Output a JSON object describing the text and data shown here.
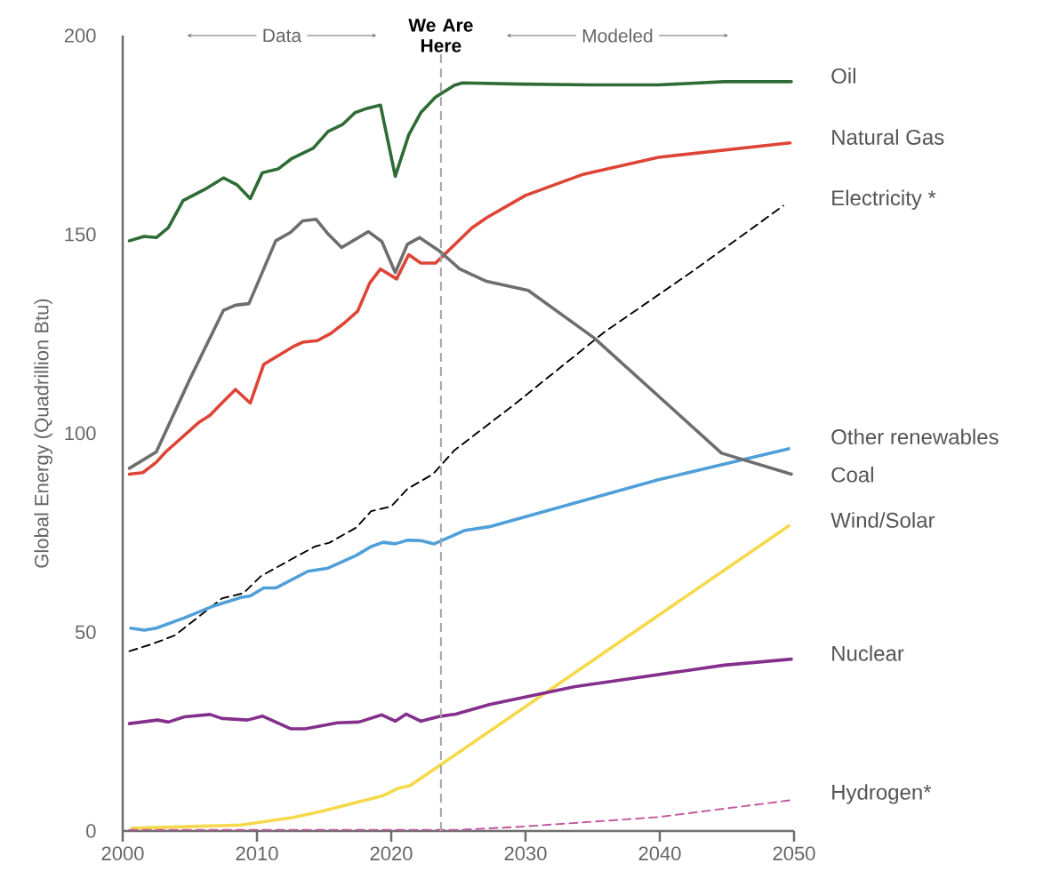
{
  "chart_data": {
    "type": "line",
    "ylabel": "Global Energy (Quadrillion Btu)",
    "xlim": [
      2000,
      2050
    ],
    "xticks": [
      2000,
      2010,
      2020,
      2030,
      2040,
      2050
    ],
    "ylim": [
      0,
      200
    ],
    "yticks": [
      0,
      50,
      100,
      150,
      200
    ],
    "ref_lines": [
      {
        "axis": "x",
        "value": 2023.7,
        "label": "We Are Here",
        "color": "#a6a6a6",
        "line_style": "dashed"
      }
    ],
    "annotations": [
      "Data",
      "Modeled"
    ],
    "series": [
      {
        "name": "Oil",
        "color": "#2e6b35",
        "line_style": "solid",
        "x": [
          2000.5,
          2001.6,
          2002.5,
          2003.4,
          2004.5,
          2006.1,
          2007.5,
          2008.5,
          2009.5,
          2010.4,
          2011.6,
          2012.6,
          2014.2,
          2015.3,
          2016.4,
          2017.3,
          2018.2,
          2019.2,
          2020.3,
          2021.3,
          2022.2,
          2023.3,
          2024.7,
          2025.3,
          2029.7,
          2034.8,
          2039.9,
          2044.8,
          2049.8
        ],
        "values": [
          148.4,
          149.5,
          149.2,
          151.7,
          158.5,
          161.3,
          164.2,
          162.5,
          159.0,
          165.5,
          166.5,
          169.1,
          171.7,
          175.9,
          177.7,
          180.6,
          181.7,
          182.5,
          164.6,
          175.0,
          180.6,
          184.5,
          187.5,
          188.1,
          187.8,
          187.6,
          187.6,
          188.4,
          188.4
        ]
      },
      {
        "name": "Natural Gas",
        "color": "#de4436",
        "line_style": "solid",
        "x": [
          2000.5,
          2001.5,
          2002.5,
          2003.2,
          2005.7,
          2006.5,
          2007.5,
          2008.4,
          2009.5,
          2010.5,
          2012.7,
          2013.4,
          2014.5,
          2015.5,
          2016.5,
          2017.5,
          2018.4,
          2019.2,
          2020.4,
          2021.3,
          2022.2,
          2023.3,
          2026.0,
          2027.1,
          2030.0,
          2034.2,
          2039.9,
          2049.7
        ],
        "values": [
          89.7,
          90.1,
          92.7,
          95.3,
          102.8,
          104.5,
          108.0,
          111.0,
          107.6,
          117.3,
          121.8,
          122.9,
          123.3,
          125.1,
          127.7,
          130.7,
          137.8,
          141.3,
          138.8,
          144.9,
          142.8,
          142.8,
          151.6,
          154.2,
          159.8,
          165.0,
          169.4,
          173.0
        ]
      },
      {
        "name": "Electricity *",
        "color": "#000000",
        "line_style": "dashed",
        "x": [
          2000.5,
          2002.1,
          2003.9,
          2005.7,
          2007.4,
          2009.0,
          2010.3,
          2012.5,
          2014.3,
          2015.4,
          2017.4,
          2018.5,
          2020.0,
          2021.2,
          2023.1,
          2024.7,
          2029.3,
          2035.9,
          2042.6,
          2049.2
        ],
        "values": [
          45.2,
          46.9,
          49.2,
          54.0,
          58.5,
          59.8,
          64.1,
          68.2,
          71.5,
          72.5,
          76.3,
          80.4,
          81.6,
          86.0,
          89.7,
          95.7,
          107.6,
          125.5,
          141.1,
          157.2
        ]
      },
      {
        "name": "Other renewables",
        "color": "#4f9fd9",
        "line_style": "solid",
        "x": [
          2000.6,
          2001.6,
          2002.5,
          2004.6,
          2006.8,
          2008.8,
          2009.5,
          2010.5,
          2011.4,
          2013.8,
          2015.3,
          2017.4,
          2018.5,
          2019.4,
          2020.3,
          2021.2,
          2022.2,
          2023.2,
          2025.5,
          2027.3,
          2039.9,
          2049.6
        ],
        "values": [
          51.0,
          50.5,
          51.0,
          53.6,
          56.6,
          58.7,
          59.1,
          61.1,
          61.1,
          65.3,
          66.1,
          69.3,
          71.5,
          72.6,
          72.2,
          73.1,
          73.0,
          72.2,
          75.6,
          76.5,
          88.3,
          96.1
        ]
      },
      {
        "name": "Coal",
        "color": "#6e6e6e",
        "line_style": "solid",
        "x": [
          2000.5,
          2002.5,
          2005.0,
          2007.5,
          2008.4,
          2009.4,
          2011.4,
          2012.5,
          2013.4,
          2014.4,
          2015.3,
          2016.3,
          2018.3,
          2019.3,
          2020.3,
          2021.2,
          2022.1,
          2023.6,
          2025.1,
          2027.1,
          2030.2,
          2035.1,
          2044.6,
          2049.8
        ],
        "values": [
          91.2,
          95.3,
          113.6,
          130.9,
          132.2,
          132.6,
          148.4,
          150.5,
          153.4,
          153.8,
          150.1,
          146.7,
          150.7,
          148.2,
          140.4,
          147.5,
          149.2,
          145.8,
          141.3,
          138.2,
          135.9,
          124.0,
          95.0,
          89.7
        ]
      },
      {
        "name": "Wind/Solar",
        "color": "#f5d94a",
        "line_style": "solid",
        "x": [
          2000.7,
          2008.8,
          2012.7,
          2014.9,
          2019.4,
          2020.5,
          2021.4,
          2024.7,
          2049.6
        ],
        "values": [
          0.7,
          1.5,
          3.4,
          5.0,
          8.9,
          10.7,
          11.4,
          19.0,
          76.7
        ]
      },
      {
        "name": "Nuclear",
        "color": "#842f8c",
        "line_style": "solid",
        "x": [
          2000.5,
          2002.6,
          2003.4,
          2004.6,
          2006.5,
          2007.4,
          2009.3,
          2010.4,
          2012.5,
          2013.6,
          2016.0,
          2017.6,
          2019.3,
          2020.3,
          2021.1,
          2022.2,
          2023.6,
          2024.8,
          2027.3,
          2033.7,
          2044.8,
          2049.8
        ],
        "values": [
          27.0,
          27.9,
          27.4,
          28.7,
          29.3,
          28.3,
          27.9,
          28.9,
          25.7,
          25.7,
          27.2,
          27.4,
          29.2,
          27.6,
          29.4,
          27.6,
          28.8,
          29.4,
          31.8,
          36.3,
          41.7,
          43.2
        ]
      },
      {
        "name": "Hydrogen*",
        "color": "#c0579f",
        "line_style": "dashed",
        "x": [
          2000.5,
          2025.0,
          2029.3,
          2039.9,
          2049.9
        ],
        "values": [
          0.3,
          0.3,
          1.0,
          3.5,
          7.8
        ]
      }
    ]
  }
}
